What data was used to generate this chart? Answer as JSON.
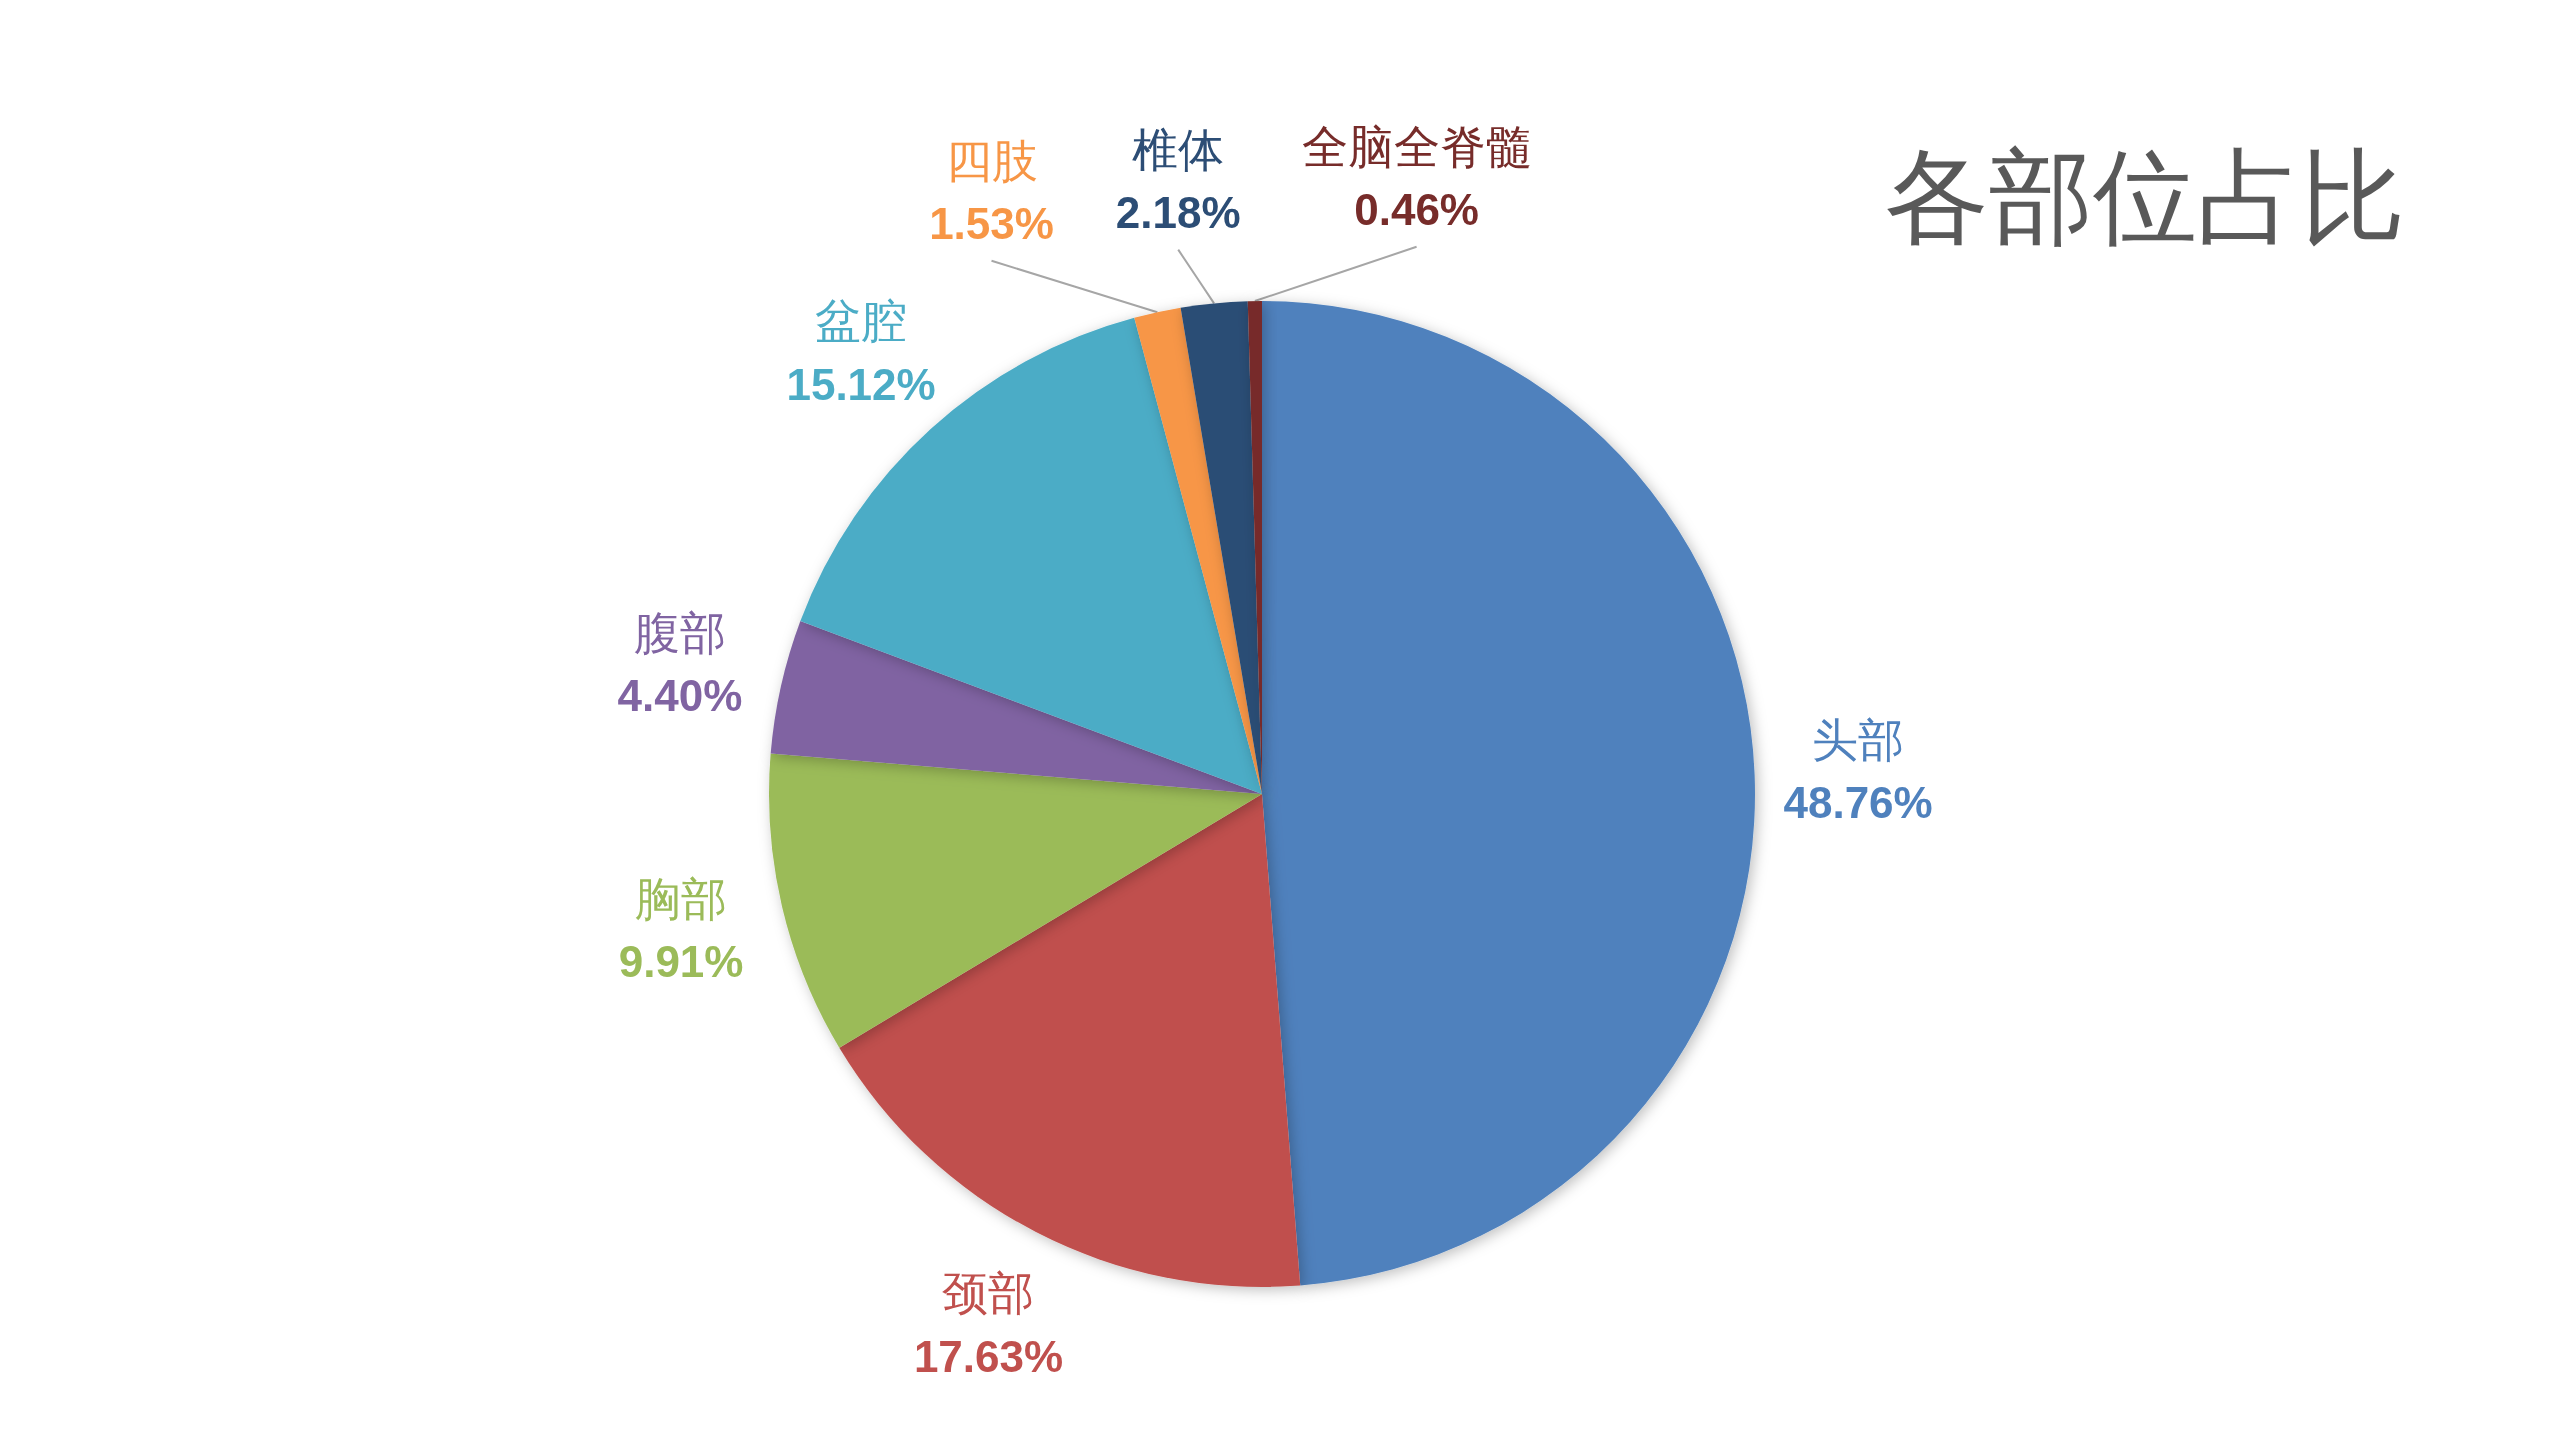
{
  "chart_data": {
    "type": "pie",
    "title": "各部位占比",
    "categories": [
      "头部",
      "颈部",
      "胸部",
      "腹部",
      "盆腔",
      "四肢",
      "椎体",
      "全脑全脊髓"
    ],
    "values": [
      48.76,
      17.63,
      9.91,
      4.4,
      15.12,
      1.53,
      2.18,
      0.46
    ],
    "value_labels": [
      "48.76%",
      "17.63%",
      "9.91%",
      "4.40%",
      "15.12%",
      "1.53%",
      "2.18%",
      "0.46%"
    ],
    "colors": [
      "#4f81bd",
      "#c0504d",
      "#9bbb59",
      "#8064a2",
      "#4bacc6",
      "#f79646",
      "#2c4d75",
      "#772c2a"
    ]
  }
}
